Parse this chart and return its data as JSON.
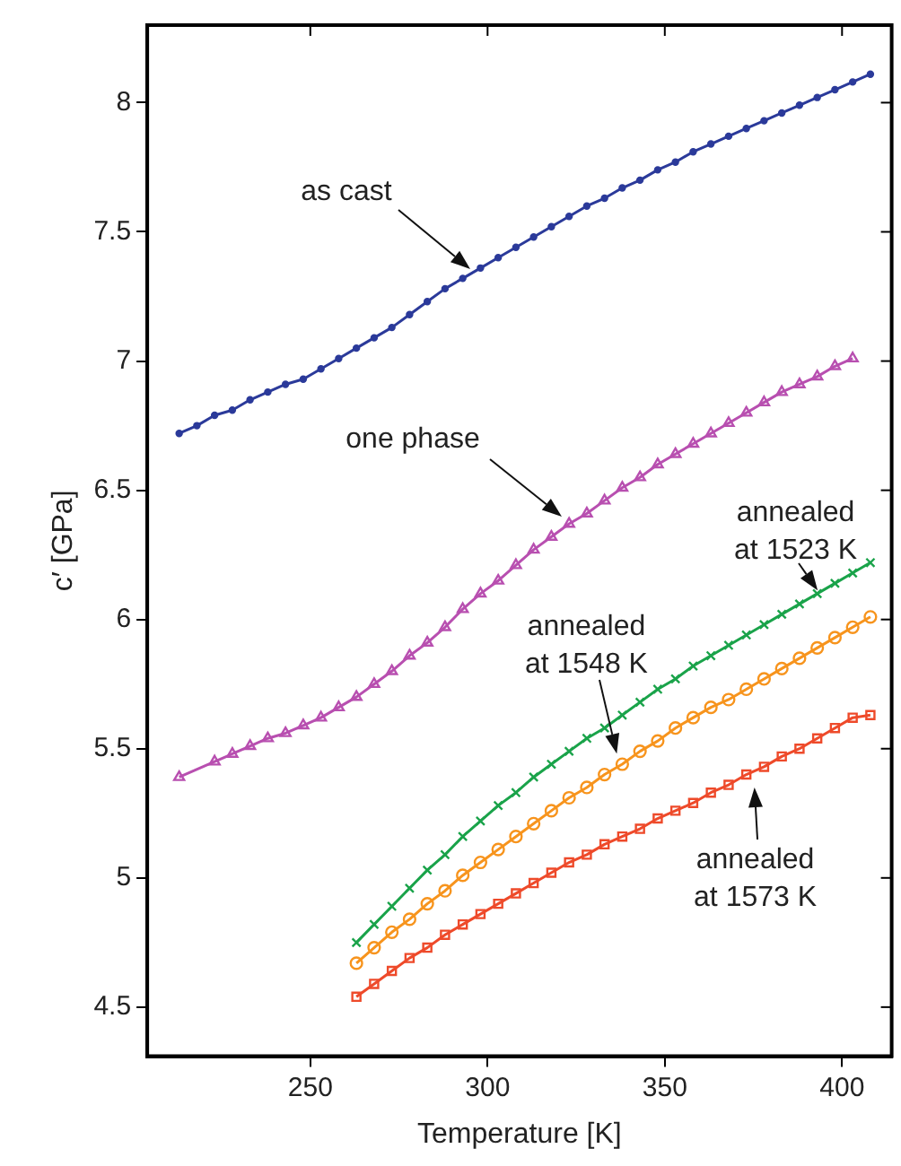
{
  "chart_data": {
    "type": "line",
    "xlabel": "Temperature [K]",
    "ylabel": "c′ [GPa]",
    "xlim": [
      204,
      414
    ],
    "xticks": [
      250,
      300,
      350,
      400
    ],
    "ylim": [
      4.31,
      8.3
    ],
    "yticks": [
      4.5,
      5,
      5.5,
      6,
      6.5,
      7,
      7.5,
      8
    ],
    "grid": false,
    "legend": false,
    "line_style": "solid",
    "series": [
      {
        "color": "#2b3a9a",
        "marker": "circle",
        "x": [
          213,
          218,
          223,
          228,
          233,
          238,
          243,
          248,
          253,
          258,
          263,
          268,
          273,
          278,
          283,
          288,
          293,
          298,
          303,
          308,
          313,
          318,
          323,
          328,
          333,
          338,
          343,
          348,
          353,
          358,
          363,
          368,
          373,
          378,
          383,
          388,
          393,
          398,
          403,
          408
        ],
        "values": [
          6.72,
          6.75,
          6.79,
          6.81,
          6.85,
          6.88,
          6.91,
          6.93,
          6.97,
          7.01,
          7.05,
          7.09,
          7.13,
          7.18,
          7.23,
          7.28,
          7.32,
          7.36,
          7.4,
          7.44,
          7.48,
          7.52,
          7.56,
          7.6,
          7.63,
          7.67,
          7.7,
          7.74,
          7.77,
          7.81,
          7.84,
          7.87,
          7.9,
          7.93,
          7.96,
          7.99,
          8.02,
          8.05,
          8.08,
          8.11
        ]
      },
      {
        "color": "#b84fb0",
        "marker": "triangle",
        "x": [
          213,
          223,
          228,
          233,
          238,
          243,
          248,
          253,
          258,
          263,
          268,
          273,
          278,
          283,
          288,
          293,
          298,
          303,
          308,
          313,
          318,
          323,
          328,
          333,
          338,
          343,
          348,
          353,
          358,
          363,
          368,
          373,
          378,
          383,
          388,
          393,
          398,
          403
        ],
        "values": [
          5.39,
          5.45,
          5.48,
          5.51,
          5.54,
          5.56,
          5.59,
          5.62,
          5.66,
          5.7,
          5.75,
          5.8,
          5.86,
          5.91,
          5.97,
          6.04,
          6.1,
          6.15,
          6.21,
          6.27,
          6.32,
          6.37,
          6.41,
          6.46,
          6.51,
          6.55,
          6.6,
          6.64,
          6.68,
          6.72,
          6.76,
          6.8,
          6.84,
          6.88,
          6.91,
          6.94,
          6.98,
          7.01
        ]
      },
      {
        "color": "#1aa34a",
        "marker": "cross",
        "x": [
          263,
          268,
          273,
          278,
          283,
          288,
          293,
          298,
          303,
          308,
          313,
          318,
          323,
          328,
          333,
          338,
          343,
          348,
          353,
          358,
          363,
          368,
          373,
          378,
          383,
          388,
          393,
          398,
          403,
          408
        ],
        "values": [
          4.75,
          4.82,
          4.89,
          4.96,
          5.03,
          5.09,
          5.16,
          5.22,
          5.28,
          5.33,
          5.39,
          5.44,
          5.49,
          5.54,
          5.58,
          5.63,
          5.68,
          5.73,
          5.77,
          5.82,
          5.86,
          5.9,
          5.94,
          5.98,
          6.02,
          6.06,
          6.1,
          6.14,
          6.18,
          6.22
        ]
      },
      {
        "color": "#f7941d",
        "marker": "circle",
        "x": [
          263,
          268,
          273,
          278,
          283,
          288,
          293,
          298,
          303,
          308,
          313,
          318,
          323,
          328,
          333,
          338,
          343,
          348,
          353,
          358,
          363,
          368,
          373,
          378,
          383,
          388,
          393,
          398,
          403,
          408
        ],
        "values": [
          4.67,
          4.73,
          4.79,
          4.84,
          4.9,
          4.95,
          5.01,
          5.06,
          5.11,
          5.16,
          5.21,
          5.26,
          5.31,
          5.35,
          5.4,
          5.44,
          5.49,
          5.53,
          5.58,
          5.62,
          5.66,
          5.69,
          5.73,
          5.77,
          5.81,
          5.85,
          5.89,
          5.93,
          5.97,
          6.01
        ]
      },
      {
        "color": "#ee4a2a",
        "marker": "square",
        "x": [
          263,
          268,
          273,
          278,
          283,
          288,
          293,
          298,
          303,
          308,
          313,
          318,
          323,
          328,
          333,
          338,
          343,
          348,
          353,
          358,
          363,
          368,
          373,
          378,
          383,
          388,
          393,
          398,
          403,
          408
        ],
        "values": [
          4.54,
          4.59,
          4.64,
          4.69,
          4.73,
          4.78,
          4.82,
          4.86,
          4.9,
          4.94,
          4.98,
          5.02,
          5.06,
          5.09,
          5.13,
          5.16,
          5.19,
          5.23,
          5.26,
          5.29,
          5.33,
          5.36,
          5.4,
          5.43,
          5.47,
          5.5,
          5.54,
          5.58,
          5.62,
          5.63
        ]
      }
    ],
    "annotations": [
      "as cast",
      "one phase",
      {
        "text": "annealed\nat 1523 K",
        "x": 395,
        "y": 6.08
      },
      {
        "text": "annealed\nat 1548 K",
        "x": 337,
        "y": 5.44
      },
      {
        "text": "annealed\nat 1573 K",
        "x": 375,
        "y": 5.39
      }
    ]
  }
}
